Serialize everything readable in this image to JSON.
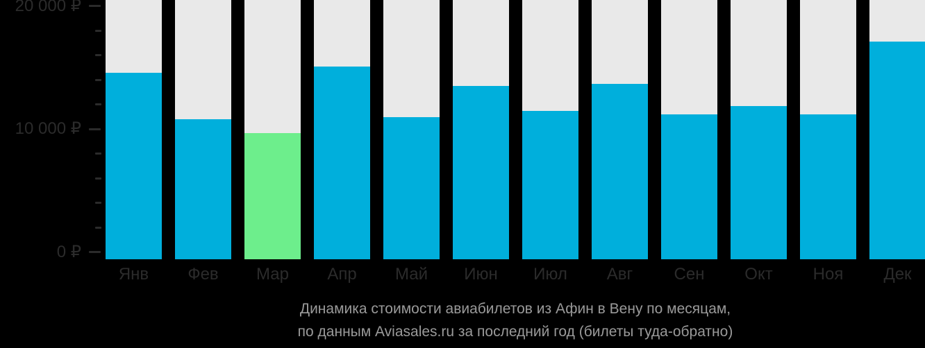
{
  "chart_data": {
    "type": "bar",
    "title": "Динамика стоимости авиабилетов из Афин в Вену по месяцам,",
    "subtitle": "по данным Aviasales.ru за последний год (билеты туда-обратно)",
    "currency": "₽",
    "categories": [
      "Янв",
      "Фев",
      "Мар",
      "Апр",
      "Май",
      "Июн",
      "Июл",
      "Авг",
      "Сен",
      "Окт",
      "Ноя",
      "Дек"
    ],
    "values": [
      14600,
      10800,
      9700,
      15100,
      11000,
      13500,
      11500,
      13700,
      11200,
      11900,
      11200,
      17100
    ],
    "highlight_index": 2,
    "highlighted_month": "Мар",
    "ylim": [
      0,
      20000
    ],
    "y_major_ticks": [
      {
        "value": 0,
        "label": "0 ₽"
      },
      {
        "value": 10000,
        "label": "10 000 ₽"
      },
      {
        "value": 20000,
        "label": "20 000 ₽"
      }
    ],
    "y_minor_tick_step": 2000,
    "grid": "off",
    "legend": "none",
    "colors": {
      "bar": "#00AFDC",
      "highlight_bar": "#6DEE8C",
      "column_track": "#E9E9E9",
      "axis_text": "#2B2B2B",
      "caption_text": "#9A9A9A",
      "background": "#000000"
    }
  }
}
